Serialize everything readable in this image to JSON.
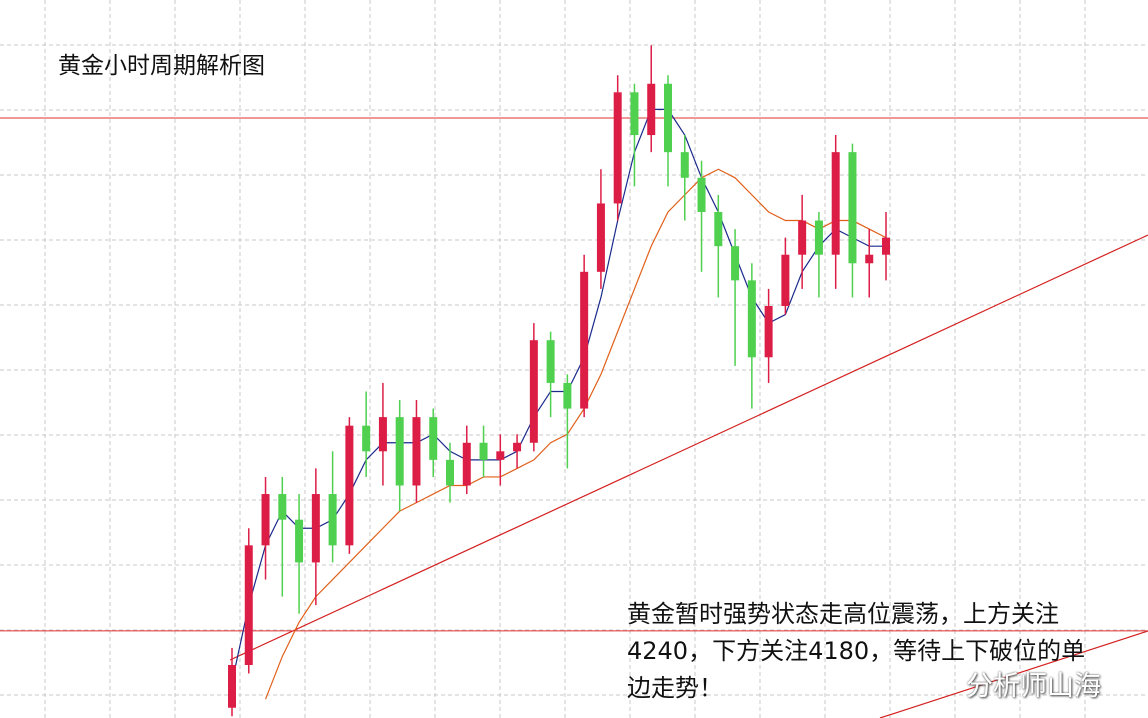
{
  "chart_data": {
    "type": "candlestick",
    "title": "黄金小时周期解析图",
    "annotation": "黄金暂时强势状态走高位震荡，上方关注4240，下方关注4180，等待上下破位的单边走势！",
    "watermark": "分析师山海",
    "ylim": [
      4169.8,
      4253.8
    ],
    "grid": true,
    "up_color": "#dc1e46",
    "down_color": "#4fd04f",
    "level_color": "#e03030",
    "levels": [
      4240,
      4180
    ],
    "candles": [
      [
        4171,
        4178,
        4170,
        4176
      ],
      [
        4176,
        4192,
        4175,
        4190
      ],
      [
        4190,
        4198,
        4186,
        4196
      ],
      [
        4196,
        4198,
        4184,
        4193
      ],
      [
        4193,
        4196,
        4182,
        4188
      ],
      [
        4188,
        4199,
        4183,
        4196
      ],
      [
        4196,
        4201,
        4188,
        4190
      ],
      [
        4190,
        4205,
        4189,
        4204
      ],
      [
        4204,
        4208,
        4198,
        4201
      ],
      [
        4201,
        4209,
        4197,
        4205
      ],
      [
        4205,
        4207,
        4194,
        4197
      ],
      [
        4197,
        4207,
        4195,
        4205
      ],
      [
        4205,
        4206,
        4198,
        4200
      ],
      [
        4200,
        4202,
        4195,
        4197
      ],
      [
        4197,
        4204,
        4196,
        4202
      ],
      [
        4202,
        4204,
        4198,
        4200
      ],
      [
        4200,
        4203,
        4197,
        4201
      ],
      [
        4201,
        4203,
        4199,
        4202
      ],
      [
        4202,
        4216,
        4201,
        4214
      ],
      [
        4214,
        4215,
        4205,
        4209
      ],
      [
        4209,
        4210,
        4199,
        4206
      ],
      [
        4206,
        4224,
        4205,
        4222
      ],
      [
        4222,
        4234,
        4220,
        4230
      ],
      [
        4230,
        4245,
        4228,
        4243
      ],
      [
        4243,
        4244,
        4232,
        4238
      ],
      [
        4238,
        4248.5,
        4236,
        4244
      ],
      [
        4244,
        4245,
        4232,
        4236
      ],
      [
        4236,
        4238,
        4228,
        4233
      ],
      [
        4233,
        4235,
        4222,
        4229
      ],
      [
        4229,
        4231,
        4219,
        4225
      ],
      [
        4225,
        4227,
        4211,
        4221
      ],
      [
        4221,
        4223,
        4206,
        4212
      ],
      [
        4212,
        4220,
        4209,
        4218
      ],
      [
        4218,
        4226,
        4217,
        4224
      ],
      [
        4224,
        4231,
        4220,
        4228
      ],
      [
        4228,
        4229,
        4219,
        4224
      ],
      [
        4224,
        4238,
        4220,
        4236
      ],
      [
        4236,
        4237,
        4219,
        4223
      ],
      [
        4223,
        4227,
        4219,
        4224
      ],
      [
        4224,
        4229,
        4221,
        4226
      ]
    ],
    "series": [
      {
        "color": "#1a2a8c",
        "values": [
          4174,
          4183,
          4190,
          4194,
          4192,
          4192,
          4193,
          4196,
          4200,
          4202,
          4202,
          4202,
          4203,
          4201,
          4200,
          4200,
          4200,
          4201,
          4205,
          4208,
          4208,
          4212,
          4219,
          4228,
          4236,
          4241,
          4241,
          4238,
          4233,
          4229,
          4224,
          4219,
          4216,
          4217,
          4222,
          4225,
          4227,
          4226,
          4225,
          4225
        ]
      },
      {
        "color": "#e0601a",
        "values": [
          null,
          null,
          4172,
          4177,
          4181,
          4184,
          4186,
          4188,
          4190,
          4192,
          4194,
          4195,
          4196,
          4197,
          4197,
          4198,
          4198,
          4199,
          4200,
          4202,
          4203,
          4206,
          4210,
          4215,
          4220,
          4225,
          4229,
          4231,
          4233,
          4234,
          4233,
          4231,
          4229,
          4228,
          4228,
          4227,
          4228,
          4228,
          4227,
          4226
        ]
      }
    ]
  }
}
